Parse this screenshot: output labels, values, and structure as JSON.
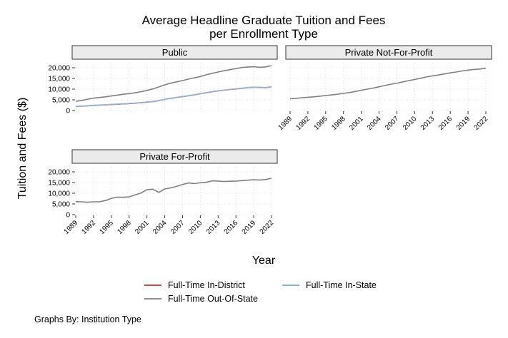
{
  "chart_data": {
    "type": "line",
    "title_lines": [
      "Average Headline Graduate Tuition and Fees",
      "per Enrollment Type"
    ],
    "xlabel": "Year",
    "ylabel": "Tuition and Fees ($)",
    "caption": "Graphs By: Institution Type",
    "grid": true,
    "legend_position": "bottom",
    "ylim": [
      0,
      21000
    ],
    "xlim": [
      1989,
      2022
    ],
    "x_ticks": [
      1989,
      1992,
      1995,
      1998,
      2001,
      2004,
      2007,
      2010,
      2013,
      2016,
      2019,
      2022
    ],
    "y_ticks": [
      0,
      5000,
      10000,
      15000,
      20000
    ],
    "y_tick_labels": [
      "0",
      "5,000",
      "10,000",
      "15,000",
      "20,000"
    ],
    "legend": [
      {
        "name": "Full-Time In-District",
        "color": "#d62728"
      },
      {
        "name": "Full-Time In-State",
        "color": "#74add1"
      },
      {
        "name": "Full-Time Out-Of-State",
        "color": "#7f7f7f"
      }
    ],
    "colors": {
      "in_district": "#d62728",
      "in_state": "#8fb6d9",
      "out_of_state": "#808080",
      "strip_fill": "#ebebeb",
      "grid": "#d9d9d9"
    },
    "x": [
      1989,
      1990,
      1991,
      1992,
      1993,
      1994,
      1995,
      1996,
      1997,
      1998,
      1999,
      2000,
      2001,
      2002,
      2003,
      2004,
      2005,
      2006,
      2007,
      2008,
      2009,
      2010,
      2011,
      2012,
      2013,
      2014,
      2015,
      2016,
      2017,
      2018,
      2019,
      2020,
      2021,
      2022
    ],
    "panels": [
      {
        "strip": "Public",
        "show_x_ticks": false,
        "show_y_ticks": true,
        "series": [
          {
            "key": "in_district",
            "values": [
              1900,
              2000,
              2200,
              2400,
              2500,
              2650,
              2800,
              2950,
              3100,
              3250,
              3450,
              3650,
              3950,
              4200,
              4600,
              5200,
              5700,
              6100,
              6500,
              6900,
              7300,
              7900,
              8300,
              8800,
              9200,
              9500,
              9800,
              10100,
              10400,
              10700,
              10900,
              10800,
              10700,
              11100
            ]
          },
          {
            "key": "in_state",
            "values": [
              1950,
              2050,
              2250,
              2450,
              2550,
              2700,
              2850,
              3000,
              3150,
              3300,
              3500,
              3700,
              4000,
              4250,
              4650,
              5250,
              5750,
              6150,
              6550,
              6950,
              7350,
              7950,
              8350,
              8850,
              9250,
              9550,
              9850,
              10150,
              10450,
              10750,
              10950,
              10850,
              10750,
              11150
            ]
          },
          {
            "key": "out_of_state",
            "values": [
              4300,
              4700,
              5300,
              5800,
              6100,
              6400,
              6800,
              7200,
              7600,
              7900,
              8300,
              8800,
              9400,
              10100,
              11000,
              12000,
              12800,
              13400,
              14000,
              14700,
              15300,
              15900,
              16700,
              17400,
              18000,
              18600,
              19100,
              19600,
              20100,
              20300,
              20500,
              20200,
              20400,
              21000
            ]
          }
        ]
      },
      {
        "strip": "Private Not-For-Profit",
        "show_x_ticks": true,
        "show_y_ticks": false,
        "series": [
          {
            "key": "out_of_state",
            "values": [
              5500,
              5700,
              6000,
              6200,
              6400,
              6700,
              7000,
              7300,
              7600,
              8000,
              8400,
              8900,
              9500,
              10000,
              10500,
              11100,
              11700,
              12300,
              12800,
              13400,
              14000,
              14500,
              15100,
              15700,
              16200,
              16600,
              17100,
              17600,
              18000,
              18500,
              18900,
              19200,
              19400,
              19800
            ]
          }
        ]
      },
      {
        "strip": "Private For-Profit",
        "show_x_ticks": true,
        "show_y_ticks": true,
        "series": [
          {
            "key": "out_of_state",
            "values": [
              6100,
              6000,
              5800,
              6000,
              6000,
              6600,
              7600,
              8200,
              8100,
              8300,
              9200,
              10100,
              11700,
              11900,
              10400,
              12000,
              12500,
              13200,
              14100,
              14800,
              14500,
              14900,
              15100,
              15800,
              15700,
              15500,
              15600,
              15700,
              15900,
              16100,
              16300,
              16200,
              16400,
              17000
            ]
          }
        ]
      }
    ]
  }
}
